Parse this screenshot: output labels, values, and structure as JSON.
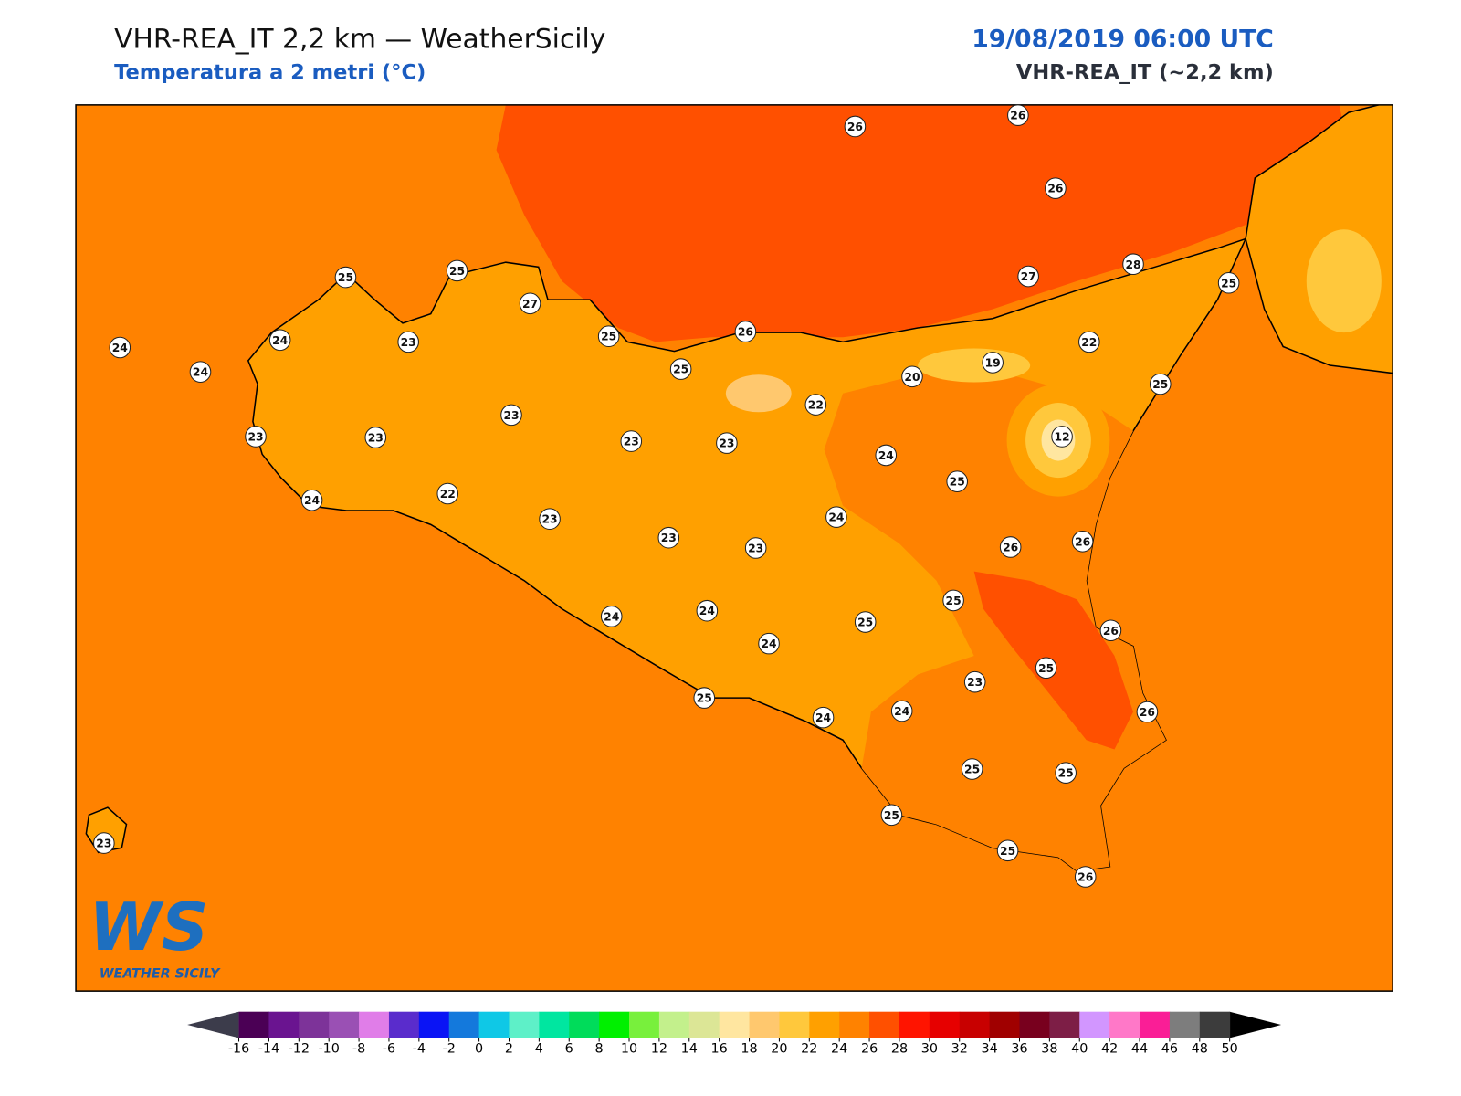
{
  "header": {
    "title": "VHR-REA_IT 2,2 km — WeatherSicily",
    "subtitle": "Temperatura a 2 metri (°C)",
    "datetime": "19/08/2019 06:00 UTC",
    "model": "VHR-REA_IT (~2,2 km)"
  },
  "logo": {
    "mark": "WS",
    "name": "WEATHER SICILY"
  },
  "stations": [
    26,
    26,
    26,
    25,
    25,
    27,
    27,
    28,
    25,
    24,
    24,
    24,
    23,
    25,
    26,
    25,
    22,
    19,
    20,
    25,
    22,
    23,
    23,
    23,
    23,
    23,
    12,
    24,
    25,
    24,
    22,
    23,
    24,
    23,
    23,
    26,
    26,
    25,
    25,
    24,
    24,
    24,
    26,
    25,
    23,
    25,
    24,
    24,
    26,
    25,
    25,
    25,
    23,
    25,
    26
  ],
  "colorbar": {
    "ticks": [
      -16,
      -14,
      -12,
      -10,
      -8,
      -6,
      -4,
      -2,
      0,
      2,
      4,
      6,
      8,
      10,
      12,
      14,
      16,
      18,
      20,
      22,
      24,
      26,
      28,
      30,
      32,
      34,
      36,
      38,
      40,
      42,
      44,
      46,
      48,
      50
    ],
    "colors": [
      "#4b0055",
      "#6a1490",
      "#7d3399",
      "#9a50b4",
      "#e07de8",
      "#5a2ccc",
      "#0a14f5",
      "#1479dc",
      "#0fc8e6",
      "#5ef0c8",
      "#00e6a0",
      "#00dc5a",
      "#00f000",
      "#78f03c",
      "#c3f08c",
      "#dce696",
      "#ffe6a0",
      "#ffc86e",
      "#ffc83c",
      "#ffa000",
      "#ff8200",
      "#ff5000",
      "#ff1400",
      "#e60000",
      "#c80000",
      "#a00000",
      "#78001e",
      "#7d1e46",
      "#d296ff",
      "#ff78c8",
      "#fa1e96",
      "#7d7d7d",
      "#3c3c3c"
    ],
    "under_color": "#3c3c4b",
    "over_color": "#000000"
  }
}
